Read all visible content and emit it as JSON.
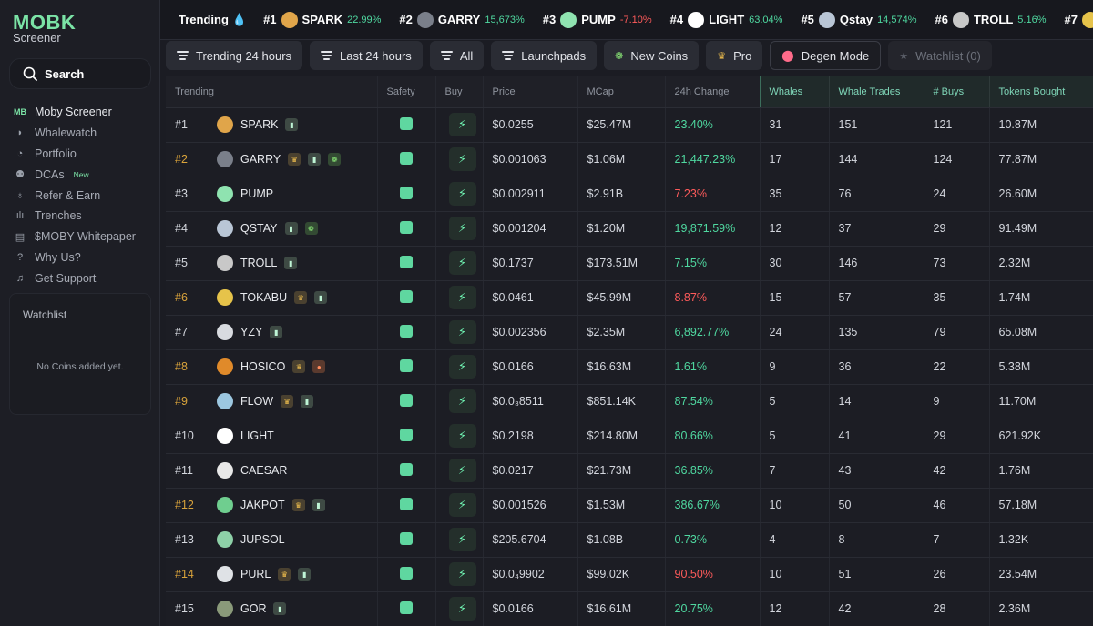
{
  "sidebar": {
    "logo": "MOB",
    "logo_sub": "Screener",
    "search_label": "Search",
    "nav": [
      {
        "label": "Moby Screener",
        "icon": "moby-logo-icon",
        "glyph": "MB"
      },
      {
        "label": "Whalewatch",
        "icon": "whale-icon",
        "glyph": "◗"
      },
      {
        "label": "Portfolio",
        "icon": "pie-chart-icon",
        "glyph": "◔"
      },
      {
        "label": "DCAs",
        "icon": "dca-icon",
        "glyph": "⚉",
        "badge": "New"
      },
      {
        "label": "Refer & Earn",
        "icon": "gift-icon",
        "glyph": "♁"
      },
      {
        "label": "Trenches",
        "icon": "trenches-icon",
        "glyph": "ılı"
      },
      {
        "label": "$MOBY Whitepaper",
        "icon": "book-icon",
        "glyph": "▤"
      },
      {
        "label": "Why Us?",
        "icon": "question-icon",
        "glyph": "?"
      },
      {
        "label": "Get Support",
        "icon": "headset-icon",
        "glyph": "♫"
      }
    ],
    "watchlist_title": "Watchlist",
    "watchlist_empty": "No Coins added yet."
  },
  "ticker": {
    "label": "Trending",
    "items": [
      {
        "rank": "#1",
        "name": "SPARK",
        "pct": "22.99%",
        "dir": "pos",
        "color": "#e0a54a"
      },
      {
        "rank": "#2",
        "name": "GARRY",
        "pct": "15,673%",
        "dir": "pos",
        "color": "#7a7f8a"
      },
      {
        "rank": "#3",
        "name": "PUMP",
        "pct": "-7.10%",
        "dir": "neg",
        "color": "#8fe3b0"
      },
      {
        "rank": "#4",
        "name": "LIGHT",
        "pct": "63.04%",
        "dir": "pos",
        "color": "#ffffff"
      },
      {
        "rank": "#5",
        "name": "Qstay",
        "pct": "14,574%",
        "dir": "pos",
        "color": "#b9c6d6"
      },
      {
        "rank": "#6",
        "name": "TROLL",
        "pct": "5.16%",
        "dir": "pos",
        "color": "#c8c8c8"
      },
      {
        "rank": "#7",
        "name": "",
        "pct": "",
        "dir": "pos",
        "color": "#e6c34a"
      }
    ]
  },
  "filters": [
    {
      "label": "Trending 24 hours",
      "icon": "lines-icon"
    },
    {
      "label": "Last 24 hours",
      "icon": "lines-icon"
    },
    {
      "label": "All",
      "icon": "lines-icon"
    },
    {
      "label": "Launchpads",
      "icon": "lines-icon"
    },
    {
      "label": "New Coins",
      "icon": "sprout-icon"
    },
    {
      "label": "Pro",
      "icon": "crown-icon"
    },
    {
      "label": "Degen Mode",
      "icon": "degen-icon"
    },
    {
      "label": "Watchlist (0)",
      "icon": "star-icon"
    }
  ],
  "columns": [
    "Trending",
    "Safety",
    "Buy",
    "Price",
    "MCap",
    "24h Change",
    "Whales",
    "Whale Trades",
    "# Buys",
    "Tokens Bought"
  ],
  "rows": [
    {
      "rank": "#1",
      "gold": false,
      "name": "SPARK",
      "color": "#e0a54a",
      "badges": [
        "pill"
      ],
      "price": "$0.0255",
      "mcap": "$25.47M",
      "change": "23.40%",
      "dir": "pos",
      "whales": "31",
      "trades": "151",
      "buys": "121",
      "tokens": "10.87M"
    },
    {
      "rank": "#2",
      "gold": true,
      "name": "GARRY",
      "color": "#7a7f8a",
      "badges": [
        "crown",
        "pill",
        "sprout"
      ],
      "price": "$0.001063",
      "mcap": "$1.06M",
      "change": "21,447.23%",
      "dir": "pos",
      "whales": "17",
      "trades": "144",
      "buys": "124",
      "tokens": "77.87M"
    },
    {
      "rank": "#3",
      "gold": false,
      "name": "PUMP",
      "color": "#8fe3b0",
      "badges": [],
      "price": "$0.002911",
      "mcap": "$2.91B",
      "change": "7.23%",
      "dir": "neg",
      "whales": "35",
      "trades": "76",
      "buys": "24",
      "tokens": "26.60M"
    },
    {
      "rank": "#4",
      "gold": false,
      "name": "QSTAY",
      "color": "#b9c6d6",
      "badges": [
        "pill",
        "sprout"
      ],
      "price": "$0.001204",
      "mcap": "$1.20M",
      "change": "19,871.59%",
      "dir": "pos",
      "whales": "12",
      "trades": "37",
      "buys": "29",
      "tokens": "91.49M"
    },
    {
      "rank": "#5",
      "gold": false,
      "name": "TROLL",
      "color": "#c8c8c8",
      "badges": [
        "pill"
      ],
      "price": "$0.1737",
      "mcap": "$173.51M",
      "change": "7.15%",
      "dir": "pos",
      "whales": "30",
      "trades": "146",
      "buys": "73",
      "tokens": "2.32M"
    },
    {
      "rank": "#6",
      "gold": true,
      "name": "TOKABU",
      "color": "#e6c34a",
      "badges": [
        "crown",
        "pill"
      ],
      "price": "$0.0461",
      "mcap": "$45.99M",
      "change": "8.87%",
      "dir": "neg",
      "whales": "15",
      "trades": "57",
      "buys": "35",
      "tokens": "1.74M"
    },
    {
      "rank": "#7",
      "gold": false,
      "name": "YZY",
      "color": "#d8dbe0",
      "badges": [
        "pill"
      ],
      "price": "$0.002356",
      "mcap": "$2.35M",
      "change": "6,892.77%",
      "dir": "pos",
      "whales": "24",
      "trades": "135",
      "buys": "79",
      "tokens": "65.08M"
    },
    {
      "rank": "#8",
      "gold": true,
      "name": "HOSICO",
      "color": "#e08a2a",
      "badges": [
        "crown",
        "bear"
      ],
      "price": "$0.0166",
      "mcap": "$16.63M",
      "change": "1.61%",
      "dir": "pos",
      "whales": "9",
      "trades": "36",
      "buys": "22",
      "tokens": "5.38M"
    },
    {
      "rank": "#9",
      "gold": true,
      "name": "FLOW",
      "color": "#9cc7e0",
      "badges": [
        "crown",
        "pill"
      ],
      "price": "$0.0₃8511",
      "mcap": "$851.14K",
      "change": "87.54%",
      "dir": "pos",
      "whales": "5",
      "trades": "14",
      "buys": "9",
      "tokens": "11.70M"
    },
    {
      "rank": "#10",
      "gold": false,
      "name": "LIGHT",
      "color": "#ffffff",
      "badges": [],
      "price": "$0.2198",
      "mcap": "$214.80M",
      "change": "80.66%",
      "dir": "pos",
      "whales": "5",
      "trades": "41",
      "buys": "29",
      "tokens": "621.92K"
    },
    {
      "rank": "#11",
      "gold": false,
      "name": "CAESAR",
      "color": "#e8e8e8",
      "badges": [],
      "price": "$0.0217",
      "mcap": "$21.73M",
      "change": "36.85%",
      "dir": "pos",
      "whales": "7",
      "trades": "43",
      "buys": "42",
      "tokens": "1.76M"
    },
    {
      "rank": "#12",
      "gold": true,
      "name": "JAKPOT",
      "color": "#6fce8f",
      "badges": [
        "crown",
        "pill"
      ],
      "price": "$0.001526",
      "mcap": "$1.53M",
      "change": "386.67%",
      "dir": "pos",
      "whales": "10",
      "trades": "50",
      "buys": "46",
      "tokens": "57.18M"
    },
    {
      "rank": "#13",
      "gold": false,
      "name": "JUPSOL",
      "color": "#8ed1a8",
      "badges": [],
      "price": "$205.6704",
      "mcap": "$1.08B",
      "change": "0.73%",
      "dir": "pos",
      "whales": "4",
      "trades": "8",
      "buys": "7",
      "tokens": "1.32K"
    },
    {
      "rank": "#14",
      "gold": true,
      "name": "PURL",
      "color": "#dfe2e6",
      "badges": [
        "crown",
        "pill"
      ],
      "price": "$0.0₄9902",
      "mcap": "$99.02K",
      "change": "90.50%",
      "dir": "neg",
      "whales": "10",
      "trades": "51",
      "buys": "26",
      "tokens": "23.54M"
    },
    {
      "rank": "#15",
      "gold": false,
      "name": "GOR",
      "color": "#8a9a7a",
      "badges": [
        "pill"
      ],
      "price": "$0.0166",
      "mcap": "$16.61M",
      "change": "20.75%",
      "dir": "pos",
      "whales": "12",
      "trades": "42",
      "buys": "28",
      "tokens": "2.36M"
    }
  ],
  "colors": {
    "accent": "#7be3a6",
    "positive": "#4fd8a0",
    "negative": "#ff5b5b",
    "gold_rank": "#d9a33b"
  }
}
